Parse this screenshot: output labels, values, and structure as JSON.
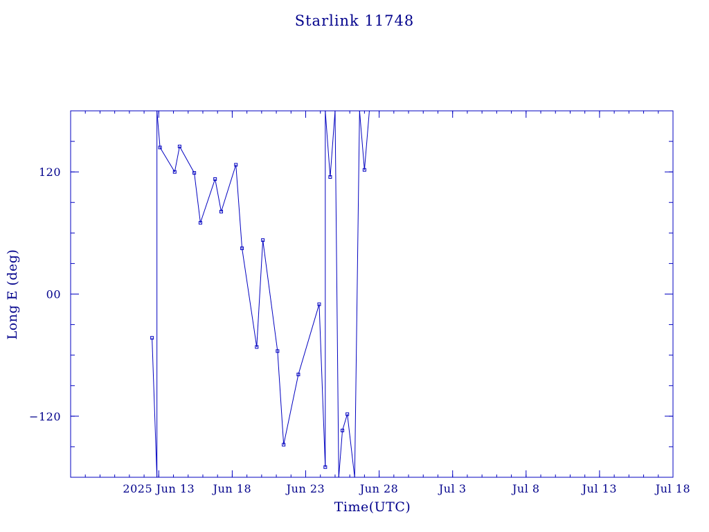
{
  "chart_data": {
    "type": "line",
    "title": "Starlink 11748",
    "xlabel": "Time(UTC)",
    "ylabel": "Long E (deg)",
    "x_start": "2025-06-07",
    "x_end": "2025-07-18",
    "ylim": [
      -180,
      180
    ],
    "x_ticks": [
      {
        "date": "2025-06-13",
        "label": "2025 Jun 13"
      },
      {
        "date": "2025-06-18",
        "label": "Jun 18"
      },
      {
        "date": "2025-06-23",
        "label": "Jun 23"
      },
      {
        "date": "2025-06-28",
        "label": "Jun 28"
      },
      {
        "date": "2025-07-03",
        "label": "Jul  3"
      },
      {
        "date": "2025-07-08",
        "label": "Jul  8"
      },
      {
        "date": "2025-07-13",
        "label": "Jul 13"
      },
      {
        "date": "2025-07-18",
        "label": "Jul 18"
      }
    ],
    "y_ticks": [
      {
        "value": 120,
        "label": "120"
      },
      {
        "value": 0,
        "label": "00"
      },
      {
        "value": -120,
        "label": "−120"
      }
    ],
    "grid": false,
    "color": "#0000c0",
    "points": [
      [
        "2025-06-12 13:00",
        -43
      ],
      [
        "2025-06-12 21:00",
        -180
      ],
      [
        "2025-06-12 21:00",
        180
      ],
      [
        "2025-06-13 02:00",
        144
      ],
      [
        "2025-06-14 02:00",
        120
      ],
      [
        "2025-06-14 10:00",
        145
      ],
      [
        "2025-06-15 10:00",
        119
      ],
      [
        "2025-06-15 20:00",
        70
      ],
      [
        "2025-06-16 20:00",
        113
      ],
      [
        "2025-06-17 06:00",
        81
      ],
      [
        "2025-06-18 06:00",
        127
      ],
      [
        "2025-06-18 16:00",
        45
      ],
      [
        "2025-06-19 16:00",
        -52
      ],
      [
        "2025-06-20 02:00",
        53
      ],
      [
        "2025-06-21 02:00",
        -56
      ],
      [
        "2025-06-21 12:00",
        -148
      ],
      [
        "2025-06-22 12:00",
        -79
      ],
      [
        "2025-06-23 22:00",
        -10
      ],
      [
        "2025-06-24 08:00",
        -170
      ],
      [
        "2025-06-24 08:00",
        180
      ],
      [
        "2025-06-24 16:00",
        115
      ],
      [
        "2025-06-25 00:00",
        180
      ],
      [
        "2025-06-25 06:00",
        -180
      ],
      [
        "2025-06-25 12:00",
        -134
      ],
      [
        "2025-06-25 20:00",
        -118
      ],
      [
        "2025-06-26 08:00",
        -180
      ],
      [
        "2025-06-26 16:00",
        180
      ],
      [
        "2025-06-27 00:00",
        122
      ],
      [
        "2025-06-27 08:00",
        180
      ]
    ]
  }
}
